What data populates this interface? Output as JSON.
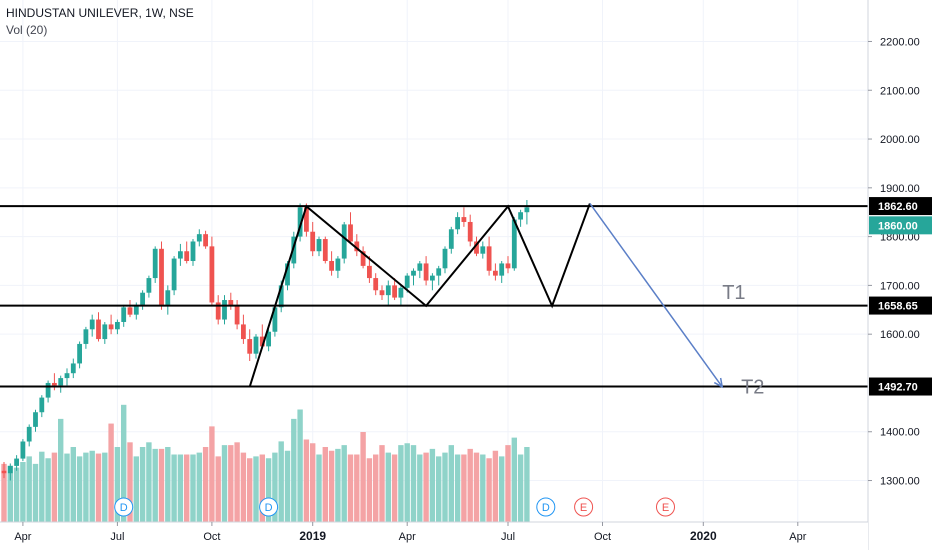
{
  "header": {
    "title": "HINDUSTAN UNILEVER, 1W, NSE",
    "volume": "Vol (20)"
  },
  "colors": {
    "up": "#26a69a",
    "down": "#ef5350",
    "vol_up": "#8fd3c9",
    "vol_down": "#f4a3a5",
    "line": "#000000",
    "target": "#5b7fc7",
    "grid": "#f0f3fa",
    "badge_current": "#26a69a",
    "earnings": "#ef5350",
    "dividend": "#2196f3"
  },
  "chart_data": {
    "type": "candlestick",
    "title": "HINDUSTAN UNILEVER, 1W, NSE",
    "ylim": [
      1215,
      2285
    ],
    "y_ticks": [
      "2200.00",
      "2100.00",
      "2000.00",
      "1900.00",
      "1800.00",
      "1700.00",
      "1600.00",
      "1400.00",
      "1300.00"
    ],
    "x_ticks": [
      "Apr",
      "Jul",
      "Oct",
      "2019",
      "Apr",
      "Jul",
      "Oct",
      "2020",
      "Apr"
    ],
    "grid": true,
    "candles": [
      [
        1320,
        1338,
        1305,
        1315
      ],
      [
        1315,
        1335,
        1300,
        1330
      ],
      [
        1330,
        1352,
        1320,
        1345
      ],
      [
        1345,
        1385,
        1340,
        1380
      ],
      [
        1380,
        1415,
        1370,
        1410
      ],
      [
        1410,
        1445,
        1400,
        1440
      ],
      [
        1440,
        1475,
        1430,
        1470
      ],
      [
        1470,
        1505,
        1460,
        1500
      ],
      [
        1500,
        1520,
        1485,
        1495
      ],
      [
        1495,
        1515,
        1480,
        1510
      ],
      [
        1510,
        1530,
        1495,
        1520
      ],
      [
        1520,
        1550,
        1510,
        1540
      ],
      [
        1540,
        1585,
        1530,
        1580
      ],
      [
        1580,
        1615,
        1570,
        1610
      ],
      [
        1610,
        1640,
        1595,
        1630
      ],
      [
        1630,
        1645,
        1585,
        1590
      ],
      [
        1590,
        1625,
        1580,
        1620
      ],
      [
        1620,
        1640,
        1600,
        1610
      ],
      [
        1610,
        1630,
        1600,
        1625
      ],
      [
        1625,
        1660,
        1615,
        1655
      ],
      [
        1655,
        1670,
        1635,
        1640
      ],
      [
        1640,
        1665,
        1630,
        1660
      ],
      [
        1660,
        1690,
        1650,
        1685
      ],
      [
        1685,
        1720,
        1675,
        1715
      ],
      [
        1715,
        1780,
        1705,
        1775
      ],
      [
        1775,
        1790,
        1650,
        1660
      ],
      [
        1660,
        1700,
        1640,
        1690
      ],
      [
        1690,
        1760,
        1680,
        1755
      ],
      [
        1755,
        1785,
        1740,
        1770
      ],
      [
        1770,
        1790,
        1745,
        1750
      ],
      [
        1750,
        1795,
        1740,
        1790
      ],
      [
        1790,
        1815,
        1780,
        1805
      ],
      [
        1805,
        1812,
        1775,
        1780
      ],
      [
        1780,
        1800,
        1660,
        1665
      ],
      [
        1665,
        1680,
        1620,
        1630
      ],
      [
        1630,
        1680,
        1620,
        1670
      ],
      [
        1670,
        1685,
        1650,
        1660
      ],
      [
        1660,
        1670,
        1610,
        1620
      ],
      [
        1620,
        1640,
        1580,
        1590
      ],
      [
        1590,
        1610,
        1545,
        1560
      ],
      [
        1560,
        1600,
        1550,
        1595
      ],
      [
        1595,
        1620,
        1570,
        1575
      ],
      [
        1575,
        1610,
        1565,
        1605
      ],
      [
        1605,
        1660,
        1595,
        1655
      ],
      [
        1655,
        1710,
        1645,
        1700
      ],
      [
        1700,
        1750,
        1690,
        1745
      ],
      [
        1745,
        1810,
        1735,
        1800
      ],
      [
        1800,
        1868,
        1790,
        1860
      ],
      [
        1860,
        1868,
        1800,
        1810
      ],
      [
        1810,
        1830,
        1760,
        1770
      ],
      [
        1770,
        1800,
        1760,
        1795
      ],
      [
        1795,
        1800,
        1745,
        1750
      ],
      [
        1750,
        1770,
        1720,
        1730
      ],
      [
        1730,
        1760,
        1715,
        1755
      ],
      [
        1755,
        1830,
        1745,
        1825
      ],
      [
        1825,
        1850,
        1785,
        1790
      ],
      [
        1790,
        1805,
        1760,
        1770
      ],
      [
        1770,
        1780,
        1735,
        1740
      ],
      [
        1740,
        1760,
        1705,
        1715
      ],
      [
        1715,
        1725,
        1680,
        1690
      ],
      [
        1690,
        1700,
        1670,
        1680
      ],
      [
        1680,
        1710,
        1660,
        1700
      ],
      [
        1700,
        1715,
        1670,
        1675
      ],
      [
        1675,
        1700,
        1660,
        1695
      ],
      [
        1695,
        1725,
        1685,
        1720
      ],
      [
        1720,
        1735,
        1700,
        1730
      ],
      [
        1730,
        1750,
        1715,
        1745
      ],
      [
        1745,
        1760,
        1700,
        1710
      ],
      [
        1710,
        1725,
        1690,
        1720
      ],
      [
        1720,
        1740,
        1700,
        1735
      ],
      [
        1735,
        1780,
        1725,
        1775
      ],
      [
        1775,
        1820,
        1765,
        1815
      ],
      [
        1815,
        1850,
        1805,
        1840
      ],
      [
        1840,
        1860,
        1820,
        1830
      ],
      [
        1830,
        1845,
        1780,
        1790
      ],
      [
        1790,
        1800,
        1760,
        1765
      ],
      [
        1765,
        1790,
        1755,
        1780
      ],
      [
        1780,
        1800,
        1720,
        1730
      ],
      [
        1730,
        1745,
        1710,
        1720
      ],
      [
        1720,
        1750,
        1705,
        1745
      ],
      [
        1745,
        1760,
        1725,
        1735
      ],
      [
        1735,
        1840,
        1730,
        1835
      ],
      [
        1835,
        1855,
        1820,
        1850
      ],
      [
        1850,
        1875,
        1825,
        1860
      ]
    ],
    "volume": [
      62,
      60,
      58,
      64,
      70,
      62,
      75,
      68,
      74,
      110,
      73,
      80,
      70,
      74,
      76,
      73,
      74,
      105,
      80,
      125,
      85,
      70,
      80,
      85,
      78,
      78,
      80,
      72,
      72,
      72,
      72,
      74,
      80,
      102,
      70,
      82,
      82,
      85,
      74,
      68,
      70,
      72,
      68,
      74,
      86,
      76,
      110,
      120,
      88,
      84,
      72,
      80,
      76,
      78,
      82,
      72,
      72,
      96,
      68,
      72,
      82,
      74,
      72,
      82,
      84,
      82,
      72,
      74,
      78,
      70,
      74,
      82,
      72,
      72,
      78,
      74,
      72,
      68,
      76,
      70,
      82,
      90,
      72,
      80
    ],
    "levels": [
      {
        "label": "1862.60",
        "price": 1862.6
      },
      {
        "label": "1658.65",
        "price": 1658.65
      },
      {
        "label": "1492.70",
        "price": 1492.7
      }
    ],
    "current_price": {
      "label": "1860.00",
      "price": 1860.0
    },
    "pattern_points": [
      [
        39,
        1492
      ],
      [
        48,
        1862
      ],
      [
        67,
        1658
      ],
      [
        80,
        1862
      ],
      [
        87,
        1658
      ],
      [
        93,
        1868
      ]
    ],
    "projection": {
      "from": [
        93,
        1868
      ],
      "to": [
        114,
        1492
      ]
    },
    "annotations": [
      {
        "text": "T1",
        "at": [
          114,
          1672
        ]
      },
      {
        "text": "T2",
        "at": [
          117,
          1478
        ]
      }
    ],
    "events": [
      {
        "type": "dividend",
        "text": "D",
        "bar": 19
      },
      {
        "type": "dividend",
        "text": "D",
        "bar": 42
      },
      {
        "type": "dividend",
        "text": "D",
        "bar": 86
      },
      {
        "type": "earnings",
        "text": "E",
        "bar": 92
      },
      {
        "type": "earnings",
        "text": "E",
        "bar": 105
      }
    ]
  }
}
